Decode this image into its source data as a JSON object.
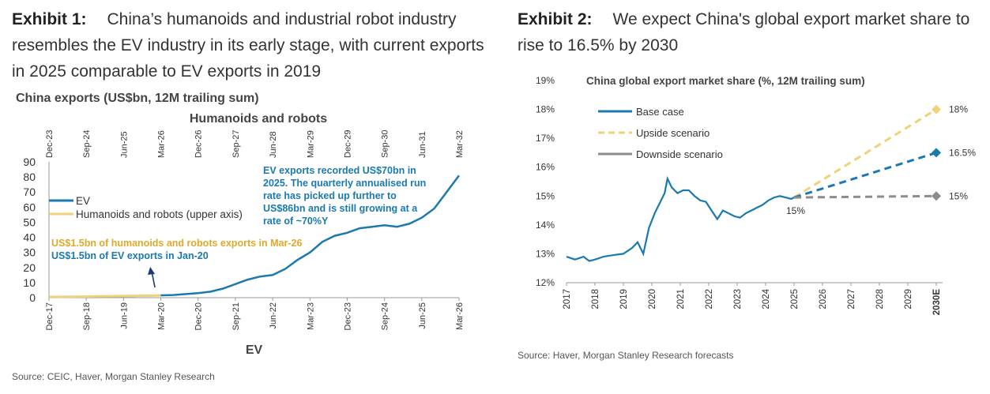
{
  "exhibit1": {
    "label": "Exhibit 1:",
    "title": "China’s humanoids and industrial robot industry resembles the EV industry in its early stage, with current exports in 2025 comparable to EV exports in 2019",
    "source": "Source: CEIC, Haver, Morgan Stanley Research"
  },
  "exhibit2": {
    "label": "Exhibit 2:",
    "title": "We expect China's global export market share to rise to 16.5% by 2030",
    "source": "Source: Haver, Morgan Stanley Research forecasts"
  },
  "chart_data": [
    {
      "type": "line",
      "title": "China exports (US$bn, 12M trailing sum)",
      "top_axis_label": "Humanoids and robots",
      "bottom_axis_label": "EV",
      "bottom_ticks": [
        "Dec-17",
        "Sep-18",
        "Jun-19",
        "Mar-20",
        "Dec-20",
        "Sep-21",
        "Jun-22",
        "Mar-23",
        "Dec-23",
        "Sep-24",
        "Jun-25",
        "Mar-26"
      ],
      "top_ticks": [
        "Dec-23",
        "Sep-24",
        "Jun-25",
        "Mar-26",
        "Dec-26",
        "Sep-27",
        "Jun-28",
        "Mar-29",
        "Dec-29",
        "Sep-30",
        "Jun-31",
        "Mar-32"
      ],
      "y_ticks": [
        0,
        10,
        20,
        30,
        40,
        50,
        60,
        70,
        80,
        90
      ],
      "ylim": [
        0,
        90
      ],
      "legend": "middle-left",
      "colors": {
        "ev": "#1a7ab0",
        "robots": "#f0d27a",
        "annot_yellow": "#e0a92a",
        "annot_blue": "#1a7ab0"
      },
      "series": [
        {
          "name": "EV",
          "x": [
            "Dec-17",
            "Jun-18",
            "Dec-18",
            "Jun-19",
            "Dec-19",
            "Jun-20",
            "Dec-20",
            "Mar-21",
            "Jun-21",
            "Sep-21",
            "Dec-21",
            "Mar-22",
            "Jun-22",
            "Sep-22",
            "Dec-22",
            "Mar-23",
            "Jun-23",
            "Sep-23",
            "Dec-23",
            "Mar-24",
            "Jun-24",
            "Sep-24",
            "Dec-24",
            "Mar-25",
            "Jun-25",
            "Sep-25",
            "Dec-25",
            "Mar-26"
          ],
          "values": [
            0.3,
            0.5,
            0.8,
            1.0,
            1.3,
            1.8,
            3,
            4,
            6,
            9,
            12,
            14,
            15,
            19,
            25,
            30,
            37,
            41,
            43,
            46,
            47,
            48,
            47,
            49,
            53,
            59,
            70,
            81
          ]
        },
        {
          "name": "Humanoids and robots (upper axis)",
          "x": [
            "Dec-23",
            "Jun-24",
            "Dec-24",
            "Jun-25",
            "Dec-25",
            "Mar-26"
          ],
          "values": [
            0.5,
            0.7,
            0.9,
            1.1,
            1.3,
            1.5
          ]
        }
      ],
      "annotations": [
        {
          "text": "EV exports recorded US$70bn in 2025. The quarterly annualised run rate has picked up further to US$86bn and is still growing at a rate of ~70%Y",
          "lines": [
            "EV exports recorded US$70bn in",
            "2025. The quarterly annualised run",
            "rate has picked up further to",
            "US$86bn and is still growing at a",
            "rate of ~70%Y"
          ]
        },
        {
          "text": "US$1.5bn of humanoids and robots exports in Mar-26"
        },
        {
          "text": "US$1.5bn of EV exports in Jan-20"
        }
      ]
    },
    {
      "type": "line",
      "title": "China global export market share (%, 12M trailing sum)",
      "x_ticks": [
        "2017",
        "2018",
        "2019",
        "2020",
        "2021",
        "2022",
        "2023",
        "2024",
        "2025",
        "2026",
        "2027",
        "2028",
        "2029",
        "2030E"
      ],
      "y_ticks": [
        "12%",
        "13%",
        "14%",
        "15%",
        "16%",
        "17%",
        "18%",
        "19%"
      ],
      "ylim": [
        12,
        19
      ],
      "legend": "top-left",
      "colors": {
        "base": "#1a7ab0",
        "upside": "#f0d27a",
        "downside": "#8c8c8c"
      },
      "series": [
        {
          "name": "Base case",
          "x": [
            2017.0,
            2017.3,
            2017.6,
            2017.8,
            2018.0,
            2018.3,
            2018.6,
            2019.0,
            2019.3,
            2019.5,
            2019.7,
            2019.9,
            2020.1,
            2020.3,
            2020.45,
            2020.55,
            2020.7,
            2020.9,
            2021.1,
            2021.3,
            2021.5,
            2021.7,
            2021.9,
            2022.1,
            2022.3,
            2022.5,
            2022.7,
            2022.9,
            2023.1,
            2023.3,
            2023.5,
            2023.7,
            2023.9,
            2024.1,
            2024.3,
            2024.5,
            2024.7,
            2024.9,
            2025.0
          ],
          "values": [
            12.9,
            12.8,
            12.9,
            12.75,
            12.8,
            12.9,
            12.95,
            13.0,
            13.2,
            13.4,
            13.0,
            13.9,
            14.4,
            14.8,
            15.1,
            15.6,
            15.3,
            15.1,
            15.2,
            15.2,
            15.0,
            14.85,
            14.8,
            14.5,
            14.2,
            14.5,
            14.4,
            14.3,
            14.25,
            14.4,
            14.5,
            14.6,
            14.7,
            14.85,
            14.95,
            15.0,
            14.95,
            14.9,
            14.95
          ]
        },
        {
          "name": "Base case forecast",
          "x": [
            2025.0,
            2030.0
          ],
          "values": [
            14.95,
            16.5
          ]
        },
        {
          "name": "Upside scenario",
          "x": [
            2025.0,
            2030.0
          ],
          "values": [
            14.95,
            18.0
          ]
        },
        {
          "name": "Downside scenario",
          "x": [
            2025.0,
            2030.0
          ],
          "values": [
            14.95,
            15.0
          ]
        }
      ],
      "point_labels": [
        {
          "label": "15%",
          "value": 15.0
        },
        {
          "label": "18%",
          "value": 18.0
        },
        {
          "label": "16.5%",
          "value": 16.5
        },
        {
          "label": "15%",
          "value": 15.0
        }
      ]
    }
  ]
}
